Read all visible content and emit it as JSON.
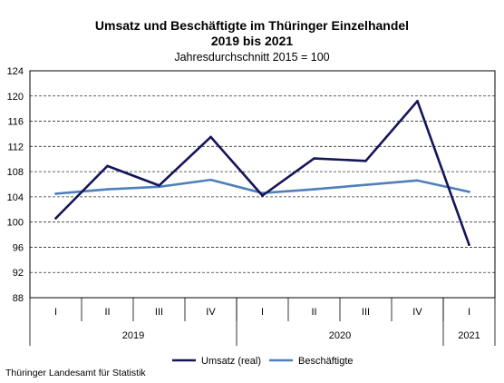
{
  "chart_data": {
    "type": "line",
    "title": "Umsatz und Beschäftigte im Thüringer Einzelhandel",
    "title_line2": "2019 bis 2021",
    "subtitle": "Jahresdurchschnitt 2015 = 100",
    "categories": [
      "I",
      "II",
      "III",
      "IV",
      "I",
      "II",
      "III",
      "IV",
      "I"
    ],
    "year_groups": [
      {
        "label": "2019",
        "count": 4
      },
      {
        "label": "2020",
        "count": 4
      },
      {
        "label": "2021",
        "count": 1
      }
    ],
    "series": [
      {
        "name": "Umsatz (real)",
        "color": "#14145a",
        "values": [
          100.6,
          108.9,
          105.8,
          113.5,
          104.2,
          110.1,
          109.7,
          119.2,
          96.4
        ]
      },
      {
        "name": "Beschäftigte",
        "color": "#4f80bb",
        "values": [
          104.5,
          105.2,
          105.6,
          106.7,
          104.6,
          105.2,
          105.9,
          106.6,
          104.8
        ]
      }
    ],
    "yticks": [
      "124",
      "120",
      "116",
      "112",
      "108",
      "104",
      "100",
      "96",
      "92",
      "88"
    ],
    "ylim": [
      88,
      124
    ],
    "grid": true,
    "legend_position": "bottom"
  },
  "source": "Thüringer Landesamt für Statistik"
}
